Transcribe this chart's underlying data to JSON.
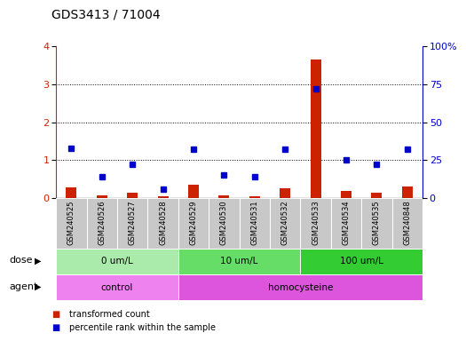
{
  "title": "GDS3413 / 71004",
  "samples": [
    "GSM240525",
    "GSM240526",
    "GSM240527",
    "GSM240528",
    "GSM240529",
    "GSM240530",
    "GSM240531",
    "GSM240532",
    "GSM240533",
    "GSM240534",
    "GSM240535",
    "GSM240848"
  ],
  "red_values": [
    0.28,
    0.08,
    0.15,
    0.05,
    0.35,
    0.07,
    0.06,
    0.25,
    3.65,
    0.18,
    0.15,
    0.3
  ],
  "blue_values_pct": [
    33,
    14,
    22,
    6,
    32,
    15,
    14,
    32,
    72,
    25,
    22,
    32
  ],
  "dose_groups": [
    {
      "label": "0 um/L",
      "start": 0,
      "end": 4,
      "color": "#AAEAAA"
    },
    {
      "label": "10 um/L",
      "start": 4,
      "end": 8,
      "color": "#66DD66"
    },
    {
      "label": "100 um/L",
      "start": 8,
      "end": 12,
      "color": "#33CC33"
    }
  ],
  "agent_groups": [
    {
      "label": "control",
      "start": 0,
      "end": 4,
      "color": "#EE82EE"
    },
    {
      "label": "homocysteine",
      "start": 4,
      "end": 12,
      "color": "#DD55DD"
    }
  ],
  "ylim_left": [
    0,
    4
  ],
  "ylim_right": [
    0,
    100
  ],
  "yticks_left": [
    0,
    1,
    2,
    3,
    4
  ],
  "yticks_right": [
    0,
    25,
    50,
    75,
    100
  ],
  "ytick_labels_right": [
    "0",
    "25",
    "50",
    "75",
    "100%"
  ],
  "red_color": "#CC2200",
  "blue_color": "#0000CC",
  "bg_color": "#FFFFFF",
  "sample_bg": "#C8C8C8",
  "title_fontsize": 10,
  "legend_items": [
    {
      "label": "transformed count",
      "color": "#CC2200"
    },
    {
      "label": "percentile rank within the sample",
      "color": "#0000CC"
    }
  ]
}
